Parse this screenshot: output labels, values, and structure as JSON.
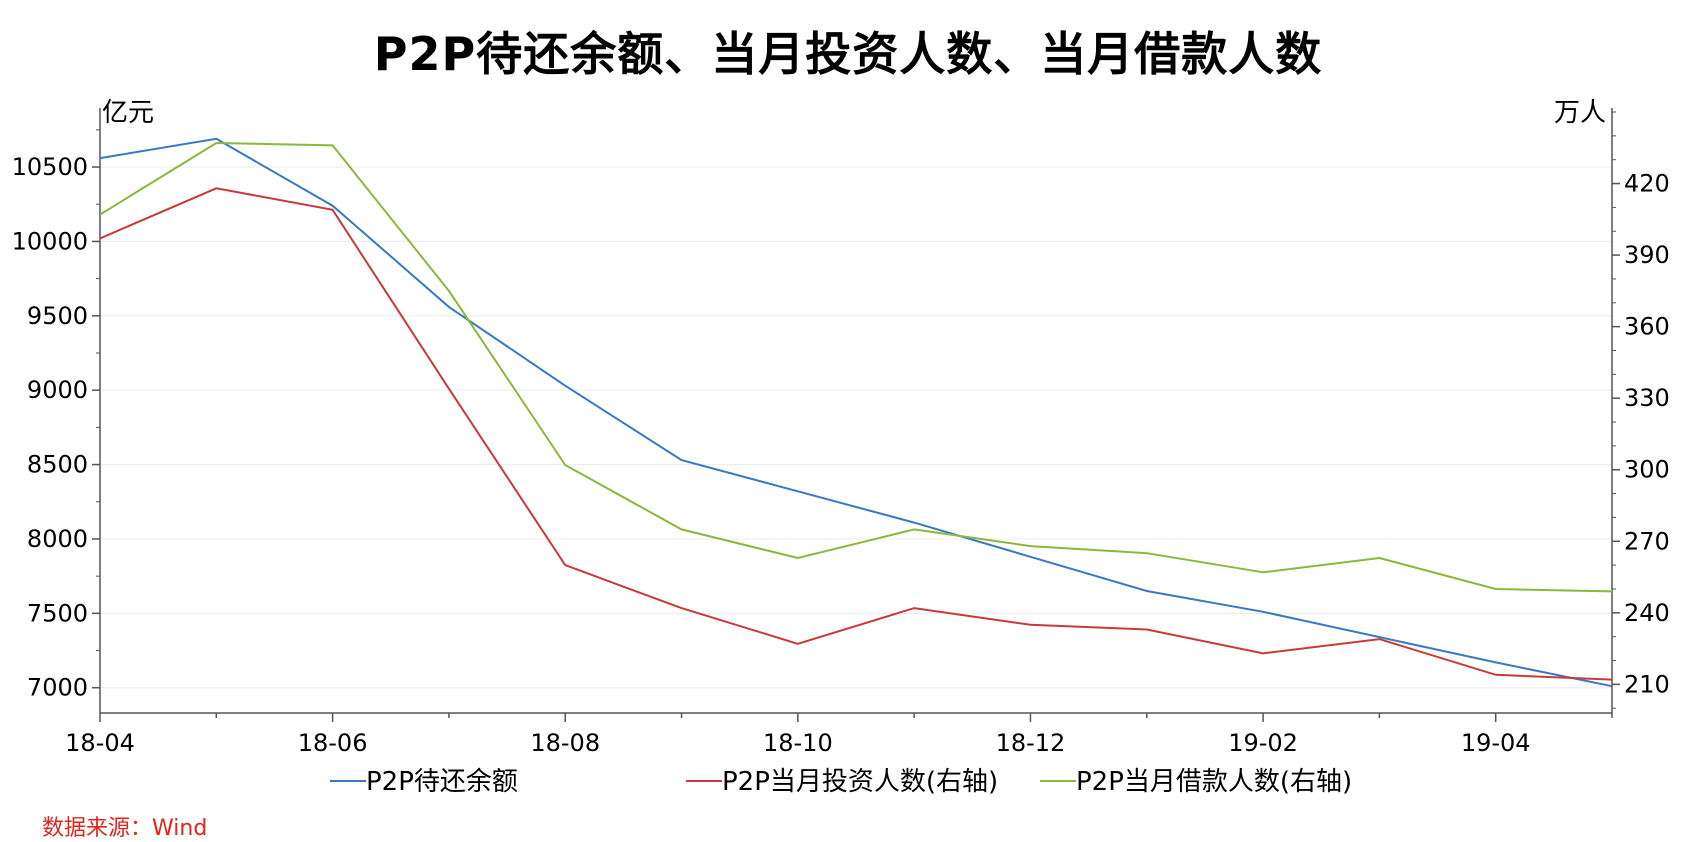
{
  "chart_data": {
    "type": "line",
    "title": "P2P待还余额、当月投资人数、当月借款人数",
    "left_axis_unit": "亿元",
    "right_axis_unit": "万人",
    "x": [
      "18-04",
      "18-05",
      "18-06",
      "18-07",
      "18-08",
      "18-09",
      "18-10",
      "18-11",
      "18-12",
      "19-01",
      "19-02",
      "19-03",
      "19-04",
      "19-05"
    ],
    "x_tick_labels": [
      "18-04",
      "18-06",
      "18-08",
      "18-10",
      "18-12",
      "19-02",
      "19-04"
    ],
    "left_ylim": [
      6830,
      10870
    ],
    "left_yticks": [
      7000,
      7500,
      8000,
      8500,
      9000,
      9500,
      10000,
      10500
    ],
    "right_ylim": [
      198,
      450
    ],
    "right_yticks": [
      210,
      240,
      270,
      300,
      330,
      360,
      390,
      420
    ],
    "grid": true,
    "legend_position": "bottom",
    "series": [
      {
        "name": "P2P待还余额",
        "axis": "left",
        "color": "#3a78c4",
        "values": [
          10560,
          10690,
          10240,
          9560,
          9030,
          8530,
          8320,
          8110,
          7880,
          7650,
          7510,
          7340,
          7170,
          7010
        ]
      },
      {
        "name": "P2P当月投资人数(右轴)",
        "axis": "right",
        "color": "#c83a3a",
        "values": [
          397,
          418,
          409,
          334,
          260,
          242,
          227,
          242,
          235,
          233,
          223,
          229,
          214,
          212
        ]
      },
      {
        "name": "P2P当月借款人数(右轴)",
        "axis": "right",
        "color": "#8ab83a",
        "values": [
          407,
          437,
          436,
          375,
          302,
          275,
          263,
          275,
          268,
          265,
          257,
          263,
          250,
          249
        ]
      }
    ]
  },
  "source_text": "数据来源：Wind"
}
